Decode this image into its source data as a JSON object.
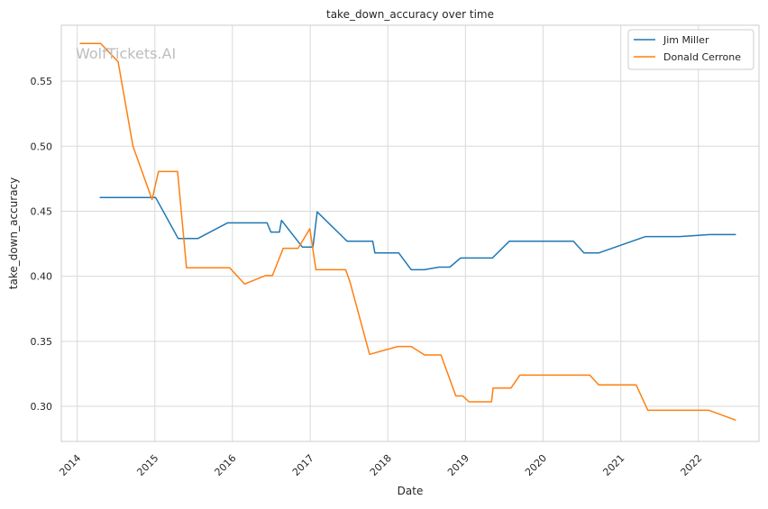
{
  "chart_data": {
    "type": "line",
    "title": "take_down_accuracy over time",
    "xlabel": "Date",
    "ylabel": "take_down_accuracy",
    "watermark": "WolfTickets.AI",
    "xlim": [
      "2013-10-18",
      "2022-10-13"
    ],
    "ylim": [
      0.273,
      0.593
    ],
    "x_ticks": [
      "2014",
      "2015",
      "2016",
      "2017",
      "2018",
      "2019",
      "2020",
      "2021",
      "2022"
    ],
    "y_ticks": [
      "0.30",
      "0.35",
      "0.40",
      "0.45",
      "0.50",
      "0.55"
    ],
    "grid": true,
    "legend": "top-right",
    "series": [
      {
        "name": "Jim Miller",
        "color": "#1f77b4",
        "points": [
          [
            "2014-04-19",
            0.4605
          ],
          [
            "2015-01-05",
            0.4605
          ],
          [
            "2015-04-21",
            0.429
          ],
          [
            "2015-07-22",
            0.429
          ],
          [
            "2015-12-09",
            0.441
          ],
          [
            "2016-06-12",
            0.441
          ],
          [
            "2016-06-30",
            0.434
          ],
          [
            "2016-08-09",
            0.434
          ],
          [
            "2016-08-19",
            0.443
          ],
          [
            "2016-11-25",
            0.4225
          ],
          [
            "2017-01-14",
            0.4225
          ],
          [
            "2017-02-03",
            0.4495
          ],
          [
            "2017-06-23",
            0.427
          ],
          [
            "2017-10-22",
            0.427
          ],
          [
            "2017-11-01",
            0.418
          ],
          [
            "2018-02-21",
            0.418
          ],
          [
            "2018-04-21",
            0.405
          ],
          [
            "2018-06-21",
            0.405
          ],
          [
            "2018-08-31",
            0.407
          ],
          [
            "2018-10-20",
            0.407
          ],
          [
            "2018-12-09",
            0.414
          ],
          [
            "2019-05-08",
            0.414
          ],
          [
            "2019-07-27",
            0.427
          ],
          [
            "2020-05-23",
            0.427
          ],
          [
            "2020-07-12",
            0.418
          ],
          [
            "2020-09-20",
            0.418
          ],
          [
            "2021-04-27",
            0.4305
          ],
          [
            "2021-10-05",
            0.4305
          ],
          [
            "2022-02-22",
            0.432
          ],
          [
            "2022-06-24",
            0.432
          ]
        ]
      },
      {
        "name": "Donald Cerrone",
        "color": "#ff7f0e",
        "points": [
          [
            "2014-01-15",
            0.579
          ],
          [
            "2014-04-21",
            0.579
          ],
          [
            "2014-07-12",
            0.565
          ],
          [
            "2014-09-20",
            0.5
          ],
          [
            "2014-12-19",
            0.459
          ],
          [
            "2015-01-18",
            0.4805
          ],
          [
            "2015-04-18",
            0.4805
          ],
          [
            "2015-05-30",
            0.4065
          ],
          [
            "2015-12-19",
            0.4065
          ],
          [
            "2016-02-27",
            0.394
          ],
          [
            "2016-06-04",
            0.4005
          ],
          [
            "2016-07-07",
            0.4005
          ],
          [
            "2016-08-27",
            0.4215
          ],
          [
            "2016-11-05",
            0.4215
          ],
          [
            "2016-12-30",
            0.4365
          ],
          [
            "2017-01-28",
            0.405
          ],
          [
            "2017-06-17",
            0.405
          ],
          [
            "2017-07-07",
            0.3955
          ],
          [
            "2017-10-07",
            0.34
          ],
          [
            "2018-02-17",
            0.346
          ],
          [
            "2018-04-21",
            0.346
          ],
          [
            "2018-06-23",
            0.3395
          ],
          [
            "2018-09-08",
            0.3395
          ],
          [
            "2018-11-17",
            0.308
          ],
          [
            "2018-12-19",
            0.308
          ],
          [
            "2019-01-18",
            0.3035
          ],
          [
            "2019-05-04",
            0.3035
          ],
          [
            "2019-05-11",
            0.314
          ],
          [
            "2019-08-03",
            0.314
          ],
          [
            "2019-09-14",
            0.324
          ],
          [
            "2020-08-08",
            0.324
          ],
          [
            "2020-09-19",
            0.3165
          ],
          [
            "2021-03-14",
            0.3165
          ],
          [
            "2021-05-08",
            0.297
          ],
          [
            "2022-02-19",
            0.297
          ],
          [
            "2022-06-24",
            0.2895
          ]
        ]
      }
    ]
  }
}
